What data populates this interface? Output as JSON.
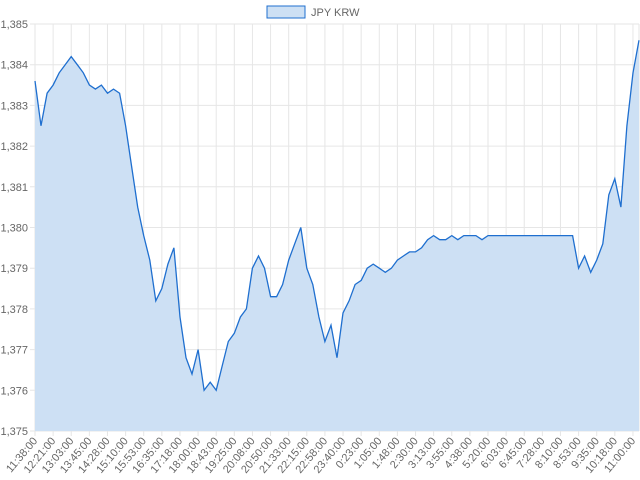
{
  "chart_data": {
    "type": "area",
    "categories": [
      "11:38:00",
      null,
      null,
      "12:21:00",
      null,
      null,
      "13:03:00",
      null,
      null,
      "13:45:00",
      null,
      null,
      "14:28:00",
      null,
      null,
      "15:10:00",
      null,
      null,
      "15:53:00",
      null,
      null,
      "16:35:00",
      null,
      null,
      "17:18:00",
      null,
      null,
      "18:00:00",
      null,
      null,
      "18:43:00",
      null,
      null,
      "19:25:00",
      null,
      null,
      "20:08:00",
      null,
      null,
      "20:50:00",
      null,
      null,
      "21:33:00",
      null,
      null,
      "22:15:00",
      null,
      null,
      "22:58:00",
      null,
      null,
      "23:40:00",
      null,
      null,
      "0:23:00",
      null,
      null,
      "1:05:00",
      null,
      null,
      "1:48:00",
      null,
      null,
      "2:30:00",
      null,
      null,
      "3:13:00",
      null,
      null,
      "3:55:00",
      null,
      null,
      "4:38:00",
      null,
      null,
      "5:20:00",
      null,
      null,
      "6:03:00",
      null,
      null,
      "6:45:00",
      null,
      null,
      "7:28:00",
      null,
      null,
      "8:10:00",
      null,
      null,
      "8:53:00",
      null,
      null,
      "9:35:00",
      null,
      null,
      "10:18:00",
      null,
      null,
      "11:00:00",
      null
    ],
    "series": [
      {
        "name": "JPY KRW",
        "color": "#1f6fcf",
        "fill": "#cde0f4",
        "values": [
          1383.6,
          1382.5,
          1383.3,
          1383.5,
          1383.8,
          1384.0,
          1384.2,
          1384.0,
          1383.8,
          1383.5,
          1383.4,
          1383.5,
          1383.3,
          1383.4,
          1383.3,
          1382.5,
          1381.5,
          1380.5,
          1379.8,
          1379.2,
          1378.2,
          1378.5,
          1379.1,
          1379.5,
          1377.8,
          1376.8,
          1376.4,
          1377.0,
          1376.0,
          1376.2,
          1376.0,
          1376.6,
          1377.2,
          1377.4,
          1377.8,
          1378.0,
          1379.0,
          1379.3,
          1379.0,
          1378.3,
          1378.3,
          1378.6,
          1379.2,
          1379.6,
          1380.0,
          1379.0,
          1378.6,
          1377.8,
          1377.2,
          1377.6,
          1376.8,
          1377.9,
          1378.2,
          1378.6,
          1378.7,
          1379.0,
          1379.1,
          1379.0,
          1378.9,
          1379.0,
          1379.2,
          1379.3,
          1379.4,
          1379.4,
          1379.5,
          1379.7,
          1379.8,
          1379.7,
          1379.7,
          1379.8,
          1379.7,
          1379.8,
          1379.8,
          1379.8,
          1379.7,
          1379.8,
          1379.8,
          1379.8,
          1379.8,
          1379.8,
          1379.8,
          1379.8,
          1379.8,
          1379.8,
          1379.8,
          1379.8,
          1379.8,
          1379.8,
          1379.8,
          1379.8,
          1379.0,
          1379.3,
          1378.9,
          1379.2,
          1379.6,
          1380.8,
          1381.2,
          1380.5,
          1382.5,
          1383.8,
          1384.6
        ]
      }
    ],
    "ylim": [
      1375,
      1385
    ],
    "yticks": [
      {
        "value": 1375,
        "label": "1,375"
      },
      {
        "value": 1376,
        "label": "1,376"
      },
      {
        "value": 1377,
        "label": "1,377"
      },
      {
        "value": 1378,
        "label": "1,378"
      },
      {
        "value": 1379,
        "label": "1,379"
      },
      {
        "value": 1380,
        "label": "1,380"
      },
      {
        "value": 1381,
        "label": "1,381"
      },
      {
        "value": 1382,
        "label": "1,382"
      },
      {
        "value": 1383,
        "label": "1,383"
      },
      {
        "value": 1384,
        "label": "1,384"
      },
      {
        "value": 1385,
        "label": "1,385"
      }
    ],
    "grid": true,
    "legend": "top"
  }
}
